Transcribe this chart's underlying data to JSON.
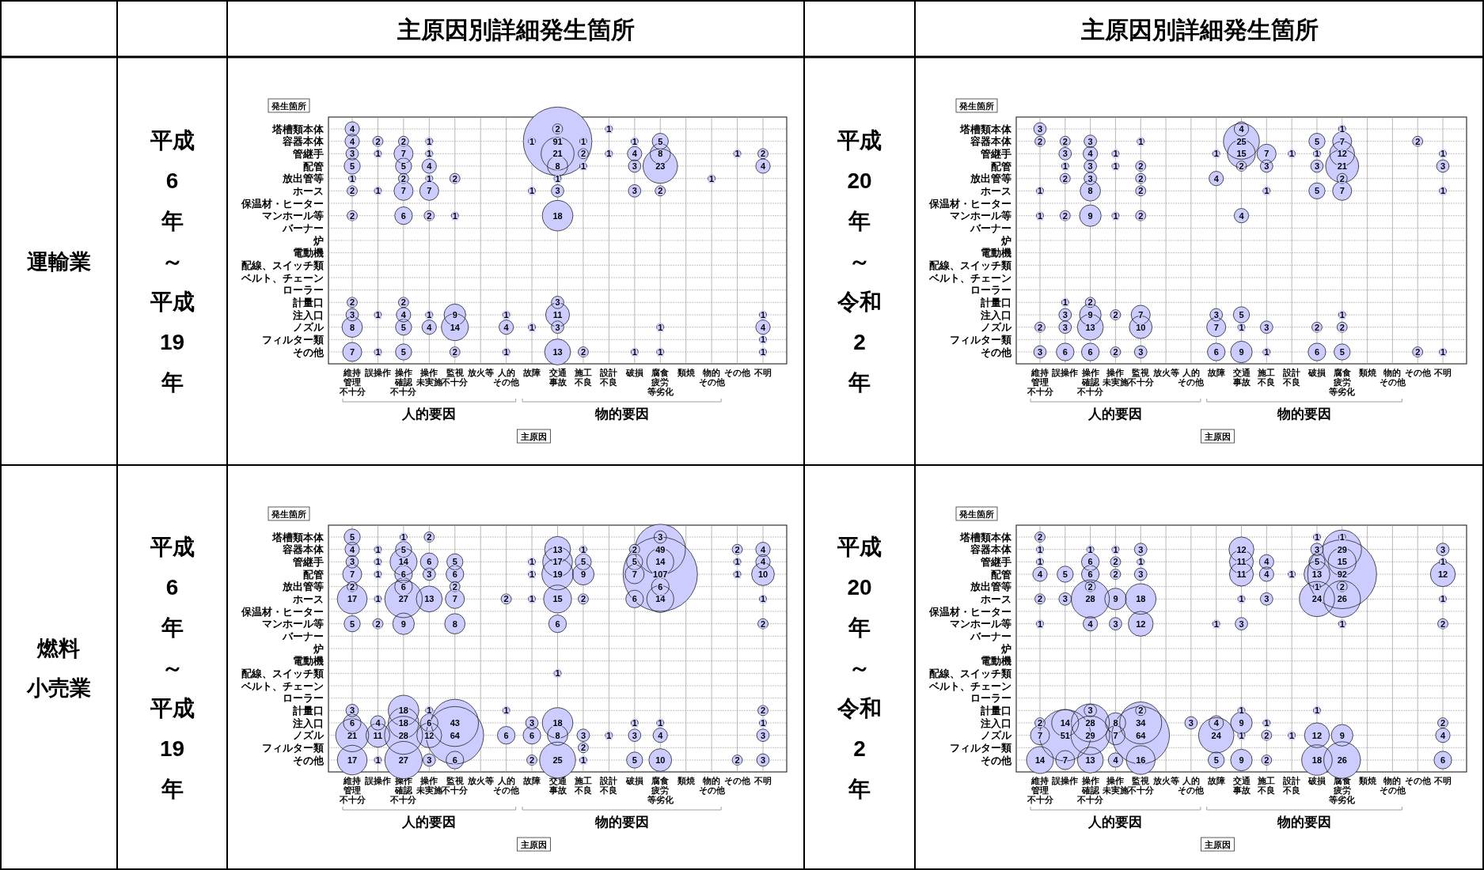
{
  "chart_data": [
    {
      "type": "heatmap",
      "title": "主原因別詳細発生箇所",
      "subtitle": "平成6年～平成19年",
      "xlabel": "主原因",
      "ylabel": "発生箇所",
      "annotations": [
        "人的要因",
        "物的要因",
        "運輸業"
      ],
      "color": "#ccccff",
      "grid": true,
      "data_labels": true,
      "categories": [
        "維持管理不十分",
        "誤操作",
        "操作確認不十分",
        "操作未実施",
        "監視不十分",
        "放火等",
        "人的その他",
        "故障",
        "交通事故",
        "施工不良",
        "設計不良",
        "破損",
        "腐食疲労等劣化",
        "類焼",
        "物的その他",
        "その他",
        "不明"
      ],
      "y_categories": [
        "塔槽類本体",
        "容器本体",
        "管継手",
        "配管",
        "放出管等",
        "ホース",
        "保温材・ヒーター",
        "マンホール等",
        "バーナー",
        "炉",
        "電動機",
        "配線、スイッチ類",
        "ベルト、チェーン",
        "ローラー",
        "計量口",
        "注入口",
        "ノズル",
        "フィルター類",
        "その他"
      ],
      "cells": [
        [
          4,
          null,
          null,
          null,
          null,
          null,
          null,
          null,
          2,
          null,
          1,
          null,
          null,
          null,
          null,
          null,
          null
        ],
        [
          4,
          2,
          2,
          1,
          null,
          null,
          null,
          1,
          91,
          1,
          null,
          1,
          5,
          null,
          null,
          null,
          null
        ],
        [
          3,
          1,
          7,
          1,
          null,
          null,
          null,
          null,
          21,
          2,
          1,
          4,
          8,
          null,
          null,
          1,
          2
        ],
        [
          5,
          null,
          5,
          4,
          null,
          null,
          null,
          null,
          8,
          1,
          null,
          3,
          23,
          null,
          null,
          null,
          4
        ],
        [
          1,
          null,
          2,
          1,
          2,
          null,
          null,
          null,
          1,
          null,
          null,
          null,
          null,
          null,
          1,
          null,
          null
        ],
        [
          2,
          1,
          7,
          7,
          null,
          null,
          null,
          1,
          3,
          null,
          null,
          3,
          2,
          null,
          null,
          null,
          null
        ],
        [
          null,
          null,
          null,
          null,
          null,
          null,
          null,
          null,
          null,
          null,
          null,
          null,
          null,
          null,
          null,
          null,
          null
        ],
        [
          2,
          null,
          6,
          2,
          1,
          null,
          null,
          null,
          18,
          null,
          null,
          null,
          null,
          null,
          null,
          null,
          null
        ],
        [
          null,
          null,
          null,
          null,
          null,
          null,
          null,
          null,
          null,
          null,
          null,
          null,
          null,
          null,
          null,
          null,
          null
        ],
        [
          null,
          null,
          null,
          null,
          null,
          null,
          null,
          null,
          null,
          null,
          null,
          null,
          null,
          null,
          null,
          null,
          null
        ],
        [
          null,
          null,
          null,
          null,
          null,
          null,
          null,
          null,
          null,
          null,
          null,
          null,
          null,
          null,
          null,
          null,
          null
        ],
        [
          null,
          null,
          null,
          null,
          null,
          null,
          null,
          null,
          null,
          null,
          null,
          null,
          null,
          null,
          null,
          null,
          null
        ],
        [
          null,
          null,
          null,
          null,
          null,
          null,
          null,
          null,
          null,
          null,
          null,
          null,
          null,
          null,
          null,
          null,
          null
        ],
        [
          null,
          null,
          null,
          null,
          null,
          null,
          null,
          null,
          null,
          null,
          null,
          null,
          null,
          null,
          null,
          null,
          null
        ],
        [
          2,
          null,
          2,
          null,
          null,
          null,
          null,
          null,
          3,
          null,
          null,
          null,
          null,
          null,
          null,
          null,
          null
        ],
        [
          3,
          1,
          4,
          1,
          9,
          null,
          1,
          null,
          11,
          null,
          null,
          null,
          null,
          null,
          null,
          null,
          1
        ],
        [
          8,
          null,
          5,
          4,
          14,
          null,
          4,
          1,
          3,
          null,
          null,
          null,
          1,
          null,
          null,
          null,
          4
        ],
        [
          null,
          null,
          null,
          null,
          null,
          null,
          null,
          null,
          null,
          null,
          null,
          null,
          null,
          null,
          null,
          null,
          1
        ],
        [
          7,
          1,
          5,
          null,
          2,
          null,
          1,
          null,
          13,
          2,
          null,
          1,
          1,
          null,
          null,
          null,
          1
        ]
      ]
    },
    {
      "type": "heatmap",
      "title": "主原因別詳細発生箇所",
      "subtitle": "平成20年～令和2年",
      "xlabel": "主原因",
      "ylabel": "発生箇所",
      "annotations": [
        "人的要因",
        "物的要因"
      ],
      "color": "#ccccff",
      "grid": true,
      "data_labels": true,
      "categories": [
        "維持管理不十分",
        "誤操作",
        "操作確認不十分",
        "操作未実施",
        "監視不十分",
        "放火等",
        "人的その他",
        "故障",
        "交通事故",
        "施工不良",
        "設計不良",
        "破損",
        "腐食疲労等劣化",
        "類焼",
        "物的その他",
        "その他",
        "不明"
      ],
      "y_categories": [
        "塔槽類本体",
        "容器本体",
        "管継手",
        "配管",
        "放出管等",
        "ホース",
        "保温材・ヒーター",
        "マンホール等",
        "バーナー",
        "炉",
        "電動機",
        "配線、スイッチ類",
        "ベルト、チェーン",
        "ローラー",
        "計量口",
        "注入口",
        "ノズル",
        "フィルター類",
        "その他"
      ],
      "cells": [
        [
          3,
          null,
          null,
          null,
          null,
          null,
          null,
          null,
          4,
          null,
          null,
          null,
          1,
          null,
          null,
          null,
          null
        ],
        [
          2,
          2,
          3,
          null,
          1,
          null,
          null,
          null,
          25,
          null,
          null,
          5,
          7,
          null,
          null,
          2,
          null
        ],
        [
          null,
          3,
          4,
          1,
          null,
          null,
          null,
          1,
          15,
          7,
          1,
          1,
          12,
          null,
          null,
          null,
          1
        ],
        [
          null,
          1,
          3,
          1,
          2,
          null,
          null,
          null,
          2,
          3,
          null,
          3,
          21,
          null,
          null,
          null,
          3
        ],
        [
          null,
          2,
          3,
          null,
          2,
          null,
          null,
          4,
          null,
          null,
          null,
          null,
          2,
          null,
          null,
          null,
          null
        ],
        [
          1,
          null,
          8,
          null,
          2,
          null,
          null,
          null,
          null,
          1,
          null,
          5,
          7,
          null,
          null,
          null,
          1
        ],
        [
          null,
          null,
          null,
          null,
          null,
          null,
          null,
          null,
          null,
          null,
          null,
          null,
          null,
          null,
          null,
          null,
          null
        ],
        [
          1,
          2,
          9,
          1,
          2,
          null,
          null,
          null,
          4,
          null,
          null,
          null,
          null,
          null,
          null,
          null,
          null
        ],
        [
          null,
          null,
          null,
          null,
          null,
          null,
          null,
          null,
          null,
          null,
          null,
          null,
          null,
          null,
          null,
          null,
          null
        ],
        [
          null,
          null,
          null,
          null,
          null,
          null,
          null,
          null,
          null,
          null,
          null,
          null,
          null,
          null,
          null,
          null,
          null
        ],
        [
          null,
          null,
          null,
          null,
          null,
          null,
          null,
          null,
          null,
          null,
          null,
          null,
          null,
          null,
          null,
          null,
          null
        ],
        [
          null,
          null,
          null,
          null,
          null,
          null,
          null,
          null,
          null,
          null,
          null,
          null,
          null,
          null,
          null,
          null,
          null
        ],
        [
          null,
          null,
          null,
          null,
          null,
          null,
          null,
          null,
          null,
          null,
          null,
          null,
          null,
          null,
          null,
          null,
          null
        ],
        [
          null,
          null,
          null,
          null,
          null,
          null,
          null,
          null,
          null,
          null,
          null,
          null,
          null,
          null,
          null,
          null,
          null
        ],
        [
          null,
          1,
          2,
          null,
          null,
          null,
          null,
          null,
          null,
          null,
          null,
          null,
          null,
          null,
          null,
          null,
          null
        ],
        [
          null,
          3,
          9,
          2,
          7,
          null,
          null,
          3,
          5,
          null,
          null,
          null,
          1,
          null,
          null,
          null,
          null
        ],
        [
          2,
          3,
          13,
          null,
          10,
          null,
          null,
          7,
          1,
          3,
          null,
          2,
          2,
          null,
          null,
          null,
          null
        ],
        [
          null,
          null,
          null,
          null,
          null,
          null,
          null,
          null,
          null,
          null,
          null,
          null,
          null,
          null,
          null,
          null,
          null
        ],
        [
          3,
          6,
          6,
          2,
          3,
          null,
          null,
          6,
          9,
          1,
          null,
          6,
          5,
          null,
          null,
          2,
          1
        ]
      ]
    },
    {
      "type": "heatmap",
      "subtitle": "平成6年～平成19年",
      "xlabel": "主原因",
      "ylabel": "発生箇所",
      "annotations": [
        "人的要因",
        "物的要因",
        "燃料小売業"
      ],
      "color": "#ccccff",
      "grid": true,
      "data_labels": true,
      "categories": [
        "維持管理不十分",
        "誤操作",
        "操作確認不十分",
        "操作未実施",
        "監視不十分",
        "放火等",
        "人的その他",
        "故障",
        "交通事故",
        "施工不良",
        "設計不良",
        "破損",
        "腐食疲労等劣化",
        "類焼",
        "物的その他",
        "その他",
        "不明"
      ],
      "y_categories": [
        "塔槽類本体",
        "容器本体",
        "管継手",
        "配管",
        "放出管等",
        "ホース",
        "保温材・ヒーター",
        "マンホール等",
        "バーナー",
        "炉",
        "電動機",
        "配線、スイッチ類",
        "ベルト、チェーン",
        "ローラー",
        "計量口",
        "注入口",
        "ノズル",
        "フィルター類",
        "その他"
      ],
      "cells": [
        [
          5,
          null,
          1,
          2,
          null,
          null,
          null,
          null,
          null,
          null,
          null,
          null,
          3,
          null,
          null,
          null,
          null
        ],
        [
          4,
          1,
          5,
          null,
          null,
          null,
          null,
          null,
          13,
          1,
          null,
          2,
          49,
          null,
          null,
          2,
          4
        ],
        [
          3,
          1,
          14,
          6,
          5,
          null,
          null,
          1,
          17,
          5,
          null,
          5,
          14,
          null,
          null,
          1,
          4
        ],
        [
          7,
          1,
          6,
          3,
          6,
          null,
          null,
          1,
          19,
          9,
          null,
          7,
          107,
          null,
          null,
          1,
          10
        ],
        [
          2,
          null,
          6,
          null,
          2,
          null,
          null,
          null,
          null,
          null,
          null,
          null,
          6,
          null,
          null,
          null,
          null
        ],
        [
          17,
          1,
          27,
          13,
          7,
          null,
          2,
          1,
          15,
          2,
          null,
          6,
          14,
          null,
          null,
          null,
          1
        ],
        [
          null,
          null,
          null,
          null,
          null,
          null,
          null,
          null,
          null,
          null,
          null,
          null,
          null,
          null,
          null,
          null,
          null
        ],
        [
          5,
          2,
          9,
          null,
          8,
          null,
          null,
          null,
          6,
          null,
          null,
          null,
          null,
          null,
          null,
          null,
          2
        ],
        [
          null,
          null,
          null,
          null,
          null,
          null,
          null,
          null,
          null,
          null,
          null,
          null,
          null,
          null,
          null,
          null,
          null
        ],
        [
          null,
          null,
          null,
          null,
          null,
          null,
          null,
          null,
          null,
          null,
          null,
          null,
          null,
          null,
          null,
          null,
          null
        ],
        [
          null,
          null,
          null,
          null,
          null,
          null,
          null,
          null,
          null,
          null,
          null,
          null,
          null,
          null,
          null,
          null,
          null
        ],
        [
          null,
          null,
          null,
          null,
          null,
          null,
          null,
          null,
          1,
          null,
          null,
          null,
          null,
          null,
          null,
          null,
          null
        ],
        [
          null,
          null,
          null,
          null,
          null,
          null,
          null,
          null,
          null,
          null,
          null,
          null,
          null,
          null,
          null,
          null,
          null
        ],
        [
          null,
          null,
          null,
          null,
          null,
          null,
          null,
          null,
          null,
          null,
          null,
          null,
          null,
          null,
          null,
          null,
          null
        ],
        [
          3,
          null,
          18,
          1,
          null,
          null,
          1,
          null,
          null,
          null,
          null,
          null,
          null,
          null,
          null,
          null,
          2
        ],
        [
          6,
          4,
          18,
          6,
          43,
          null,
          null,
          3,
          18,
          null,
          null,
          1,
          1,
          null,
          null,
          null,
          1
        ],
        [
          21,
          11,
          28,
          12,
          64,
          null,
          6,
          6,
          8,
          3,
          1,
          3,
          4,
          null,
          null,
          null,
          3
        ],
        [
          null,
          null,
          null,
          null,
          null,
          null,
          null,
          null,
          null,
          2,
          null,
          null,
          null,
          null,
          null,
          null,
          null
        ],
        [
          17,
          1,
          27,
          3,
          6,
          null,
          null,
          2,
          25,
          1,
          null,
          5,
          10,
          null,
          null,
          2,
          3
        ]
      ]
    },
    {
      "type": "heatmap",
      "subtitle": "平成20年～令和2年",
      "xlabel": "主原因",
      "ylabel": "発生箇所",
      "annotations": [
        "人的要因",
        "物的要因"
      ],
      "color": "#ccccff",
      "grid": true,
      "data_labels": true,
      "categories": [
        "維持管理不十分",
        "誤操作",
        "操作確認不十分",
        "操作未実施",
        "監視不十分",
        "放火等",
        "人的その他",
        "故障",
        "交通事故",
        "施工不良",
        "設計不良",
        "破損",
        "腐食疲労等劣化",
        "類焼",
        "物的その他",
        "その他",
        "不明"
      ],
      "y_categories": [
        "塔槽類本体",
        "容器本体",
        "管継手",
        "配管",
        "放出管等",
        "ホース",
        "保温材・ヒーター",
        "マンホール等",
        "バーナー",
        "炉",
        "電動機",
        "配線、スイッチ類",
        "ベルト、チェーン",
        "ローラー",
        "計量口",
        "注入口",
        "ノズル",
        "フィルター類",
        "その他"
      ],
      "cells": [
        [
          2,
          null,
          null,
          null,
          null,
          null,
          null,
          null,
          null,
          null,
          null,
          1,
          1,
          null,
          null,
          null,
          null
        ],
        [
          1,
          null,
          1,
          1,
          3,
          null,
          null,
          null,
          12,
          null,
          null,
          3,
          29,
          null,
          null,
          null,
          3
        ],
        [
          1,
          null,
          6,
          2,
          1,
          null,
          null,
          null,
          11,
          4,
          null,
          5,
          15,
          null,
          null,
          null,
          1
        ],
        [
          4,
          5,
          6,
          2,
          3,
          null,
          null,
          null,
          11,
          4,
          1,
          13,
          92,
          null,
          null,
          null,
          12
        ],
        [
          null,
          null,
          2,
          null,
          null,
          null,
          null,
          null,
          null,
          null,
          null,
          1,
          2,
          null,
          null,
          null,
          null
        ],
        [
          2,
          3,
          28,
          9,
          18,
          null,
          null,
          null,
          1,
          3,
          null,
          24,
          26,
          null,
          null,
          null,
          1
        ],
        [
          null,
          null,
          null,
          null,
          null,
          null,
          null,
          null,
          null,
          null,
          null,
          null,
          null,
          null,
          null,
          null,
          null
        ],
        [
          1,
          null,
          4,
          3,
          12,
          null,
          null,
          1,
          3,
          null,
          null,
          null,
          1,
          null,
          null,
          null,
          2
        ],
        [
          null,
          null,
          null,
          null,
          null,
          null,
          null,
          null,
          null,
          null,
          null,
          null,
          null,
          null,
          null,
          null,
          null
        ],
        [
          null,
          null,
          null,
          null,
          null,
          null,
          null,
          null,
          null,
          null,
          null,
          null,
          null,
          null,
          null,
          null,
          null
        ],
        [
          null,
          null,
          null,
          null,
          null,
          null,
          null,
          null,
          null,
          null,
          null,
          null,
          null,
          null,
          null,
          null,
          null
        ],
        [
          null,
          null,
          null,
          null,
          null,
          null,
          null,
          null,
          null,
          null,
          null,
          null,
          null,
          null,
          null,
          null,
          null
        ],
        [
          null,
          null,
          null,
          null,
          null,
          null,
          null,
          null,
          null,
          null,
          null,
          null,
          null,
          null,
          null,
          null,
          null
        ],
        [
          null,
          null,
          null,
          null,
          null,
          null,
          null,
          null,
          null,
          null,
          null,
          null,
          null,
          null,
          null,
          null,
          null
        ],
        [
          null,
          null,
          3,
          null,
          2,
          null,
          null,
          null,
          1,
          null,
          null,
          1,
          null,
          null,
          null,
          null,
          null
        ],
        [
          2,
          14,
          28,
          8,
          34,
          null,
          3,
          4,
          9,
          1,
          null,
          null,
          null,
          null,
          null,
          null,
          2
        ],
        [
          7,
          51,
          29,
          7,
          64,
          null,
          null,
          24,
          1,
          2,
          1,
          12,
          9,
          null,
          null,
          null,
          4
        ],
        [
          null,
          null,
          null,
          null,
          null,
          null,
          null,
          null,
          null,
          null,
          null,
          null,
          null,
          null,
          null,
          null,
          null
        ],
        [
          14,
          7,
          13,
          4,
          16,
          null,
          null,
          5,
          9,
          2,
          null,
          18,
          26,
          null,
          null,
          null,
          6
        ]
      ]
    }
  ]
}
